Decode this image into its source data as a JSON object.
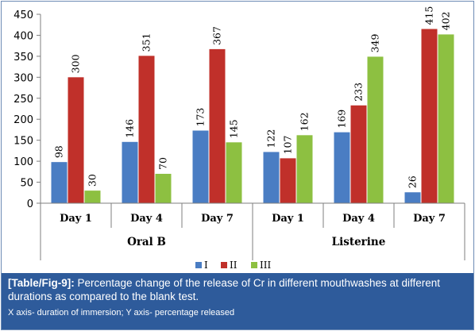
{
  "chart_data": {
    "type": "bar",
    "groups": [
      {
        "name": "Oral B",
        "categories": [
          "Day 1",
          "Day 4",
          "Day 7"
        ]
      },
      {
        "name": "Listerine",
        "categories": [
          "Day 1",
          "Day 4",
          "Day 7"
        ]
      }
    ],
    "series": [
      {
        "name": "I",
        "color": "#4a7dc3",
        "values": [
          98,
          146,
          173,
          122,
          169,
          26
        ]
      },
      {
        "name": "II",
        "color": "#c0302a",
        "values": [
          300,
          351,
          367,
          107,
          233,
          415
        ]
      },
      {
        "name": "III",
        "color": "#8dc041",
        "values": [
          30,
          70,
          145,
          162,
          349,
          402
        ]
      }
    ],
    "ylim": [
      0,
      450
    ],
    "yticks": [
      0,
      50,
      100,
      150,
      200,
      250,
      300,
      350,
      400,
      450
    ],
    "legend_position": "bottom",
    "grid": false
  },
  "caption": {
    "tag": "[Table/Fig-9]:",
    "text": " Percentage change of the release of Cr in different mouthwashes at different durations as compared to the blank test.",
    "subtext": "X axis- duration of immersion; Y axis- percentage released"
  }
}
